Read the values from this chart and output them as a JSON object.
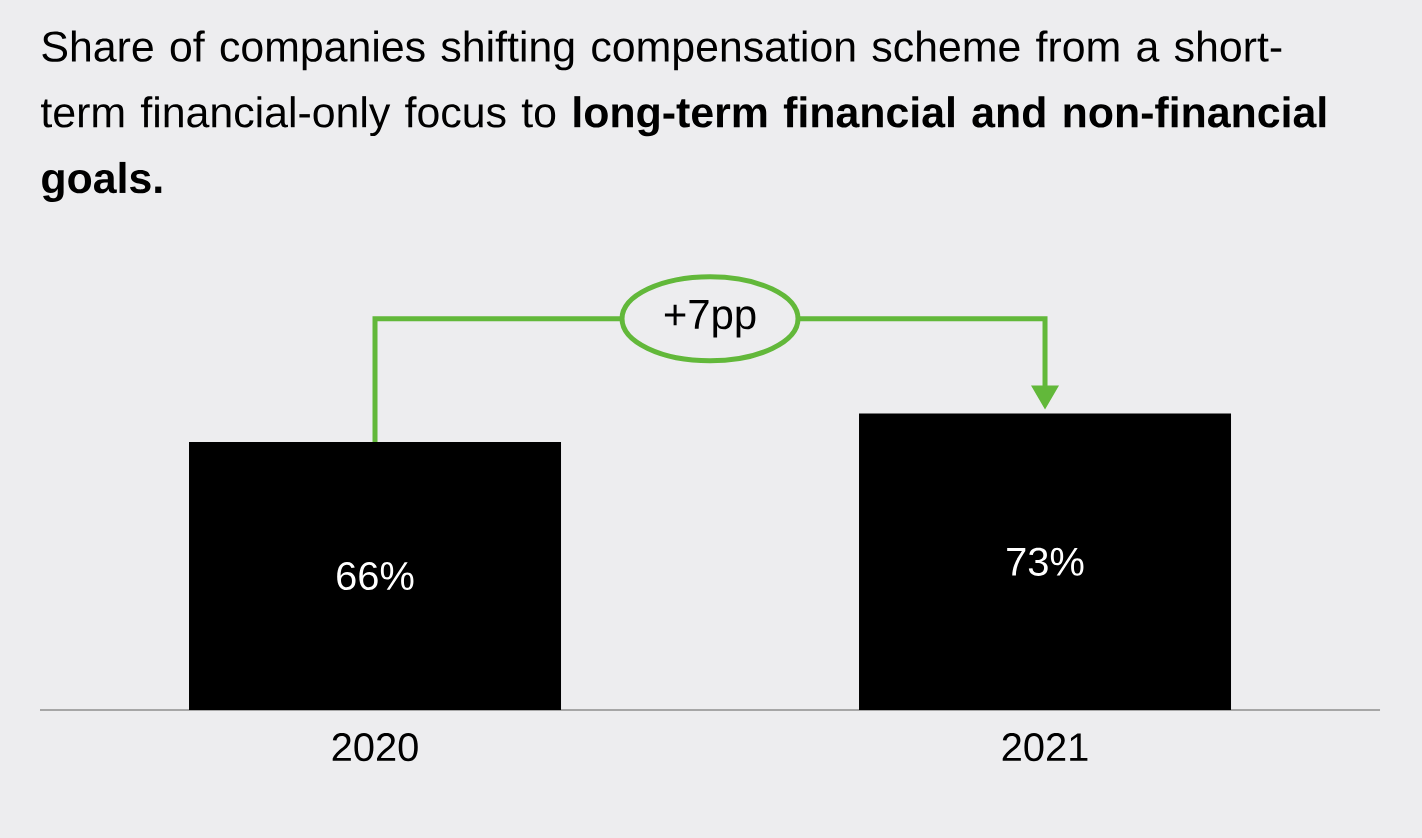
{
  "chart_data": {
    "type": "bar",
    "title": "Share of companies shifting compensation scheme from a short-term financial-only focus to **long-term financial and non-financial goals.**",
    "categories": [
      "2020",
      "2021"
    ],
    "values": [
      66,
      73
    ],
    "value_labels": [
      "66%",
      "73%"
    ],
    "color": "#000000",
    "annotations": [
      "+7pp"
    ]
  }
}
